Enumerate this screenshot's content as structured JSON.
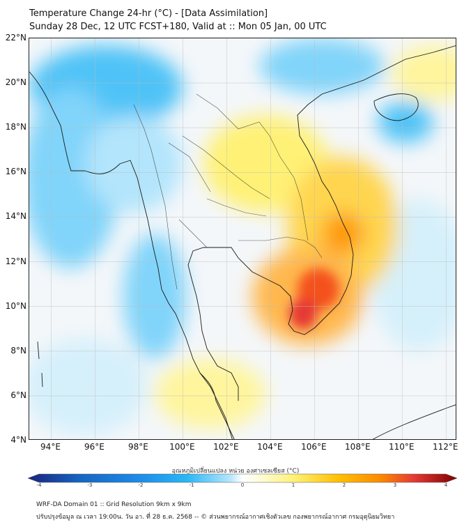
{
  "header": {
    "title": "Temperature Change 24-hr (°C) - [Data Assimilation]",
    "subtitle": "Sunday 28 Dec, 12 UTC FCST+180, Valid at :: Mon 05 Jan, 00 UTC"
  },
  "map": {
    "lat_range": [
      4,
      22
    ],
    "lon_range": [
      93,
      112.5
    ],
    "y_ticks": [
      "22°N",
      "20°N",
      "18°N",
      "16°N",
      "14°N",
      "12°N",
      "10°N",
      "8°N",
      "6°N",
      "4°N"
    ],
    "x_ticks": [
      "94°E",
      "96°E",
      "98°E",
      "100°E",
      "102°E",
      "104°E",
      "106°E",
      "108°E",
      "110°E",
      "112°E"
    ],
    "colors": {
      "cold_strong": "#1565c0",
      "cold": "#29b6f6",
      "cool": "#b3e5fc",
      "neutral": "#f4f7fa",
      "warm": "#fff59d",
      "warmer": "#ffd54f",
      "hot": "#ff9800",
      "hottest": "#e53935"
    }
  },
  "colorbar": {
    "label": "อุณหภูมิเปลี่ยนแปลง หน่วย องศาเซลเซียส (°C)",
    "min": -4,
    "max": 4,
    "ticks": [
      "-4",
      "-3",
      "-2",
      "-1",
      "0",
      "1",
      "2",
      "3",
      "4"
    ]
  },
  "footer": {
    "line1": "WRF-DA Domain 01 :: Grid Resolution 9km x 9km",
    "line2": "ปรับปรุงข้อมูล ณ เวลา 19:00น. วัน อา. ที่ 28 ธ.ค. 2568 -- © ส่วนพยากรณ์อากาศเชิงตัวเลข กองพยากรณ์อากาศ กรมอุตุนิยมวิทยา"
  }
}
